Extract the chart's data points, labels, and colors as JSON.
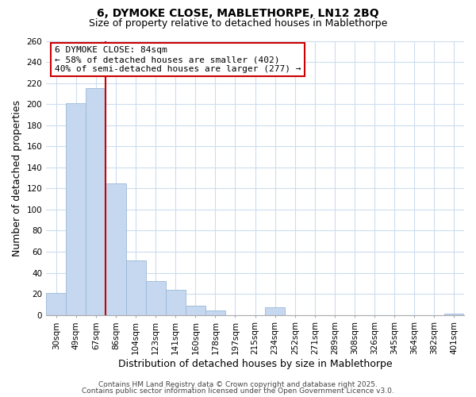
{
  "title": "6, DYMOKE CLOSE, MABLETHORPE, LN12 2BQ",
  "subtitle": "Size of property relative to detached houses in Mablethorpe",
  "xlabel": "Distribution of detached houses by size in Mablethorpe",
  "ylabel": "Number of detached properties",
  "categories": [
    "30sqm",
    "49sqm",
    "67sqm",
    "86sqm",
    "104sqm",
    "123sqm",
    "141sqm",
    "160sqm",
    "178sqm",
    "197sqm",
    "215sqm",
    "234sqm",
    "252sqm",
    "271sqm",
    "289sqm",
    "308sqm",
    "326sqm",
    "345sqm",
    "364sqm",
    "382sqm",
    "401sqm"
  ],
  "values": [
    21,
    201,
    215,
    125,
    52,
    32,
    24,
    9,
    4,
    0,
    0,
    7,
    0,
    0,
    0,
    0,
    0,
    0,
    0,
    0,
    1
  ],
  "bar_color": "#c5d8ef",
  "bar_edge_color": "#9bb8d8",
  "vline_color": "#cc0000",
  "annotation_text": "6 DYMOKE CLOSE: 84sqm\n← 58% of detached houses are smaller (402)\n40% of semi-detached houses are larger (277) →",
  "annotation_box_facecolor": "#ffffff",
  "annotation_box_edgecolor": "#cc0000",
  "ylim": [
    0,
    260
  ],
  "yticks": [
    0,
    20,
    40,
    60,
    80,
    100,
    120,
    140,
    160,
    180,
    200,
    220,
    240,
    260
  ],
  "footer1": "Contains HM Land Registry data © Crown copyright and database right 2025.",
  "footer2": "Contains public sector information licensed under the Open Government Licence v3.0.",
  "bg_color": "#ffffff",
  "grid_color": "#ccddee",
  "title_fontsize": 10,
  "subtitle_fontsize": 9,
  "axis_label_fontsize": 9,
  "tick_fontsize": 7.5,
  "annotation_fontsize": 8,
  "footer_fontsize": 6.5,
  "vline_bar_index": 2,
  "bar_width": 1.0
}
